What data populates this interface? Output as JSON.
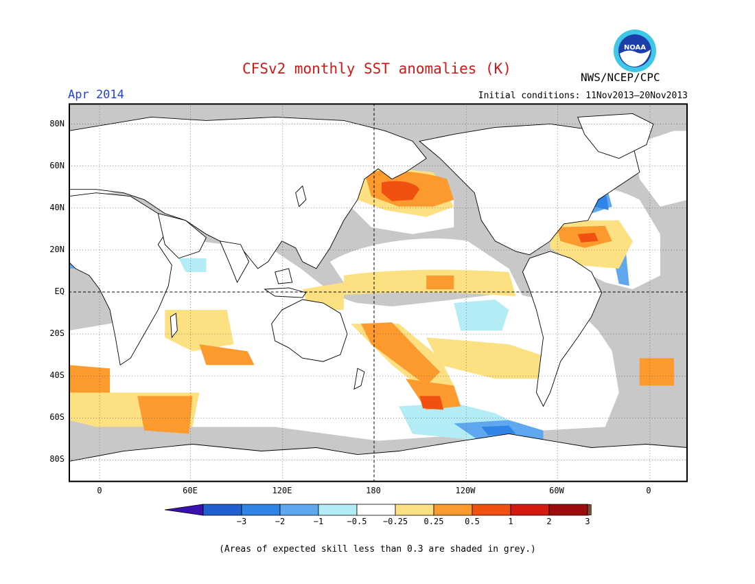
{
  "title": "CFSv2 monthly SST anomalies (K)",
  "period": "Apr 2014",
  "initial_conditions": "Initial conditions: 11Nov2013–20Nov2013",
  "agency": "NWS/NCEP/CPC",
  "logo": {
    "text": "NOAA",
    "colors": {
      "outer": "#3fc7e8",
      "inner": "#1c3ea8",
      "bird": "#ffffff"
    }
  },
  "lat_labels": [
    "80N",
    "60N",
    "40N",
    "20N",
    "EQ",
    "20S",
    "40S",
    "60S",
    "80S"
  ],
  "lon_labels": [
    "0",
    "60E",
    "120E",
    "180",
    "120W",
    "60W",
    "0"
  ],
  "colorbar": {
    "labels": [
      "−3",
      "−2",
      "−1",
      "−0.5",
      "−0.25",
      "0.25",
      "0.5",
      "1",
      "2",
      "3"
    ],
    "colors": [
      "#3a10b0",
      "#1f5fd0",
      "#2f84e6",
      "#5fa8f0",
      "#b4ecf6",
      "#ffffff",
      "#fde082",
      "#fd9a2e",
      "#f05010",
      "#d21a10",
      "#9c0c0c",
      "#7c4c38"
    ]
  },
  "note": "(Areas of expected skill less than 0.3 are shaded in grey.)",
  "colors": {
    "grey_skill": "#c8c8c8",
    "land": "#ffffff",
    "coast": "#000000",
    "title": "#d01818",
    "period": "#2040e0"
  }
}
